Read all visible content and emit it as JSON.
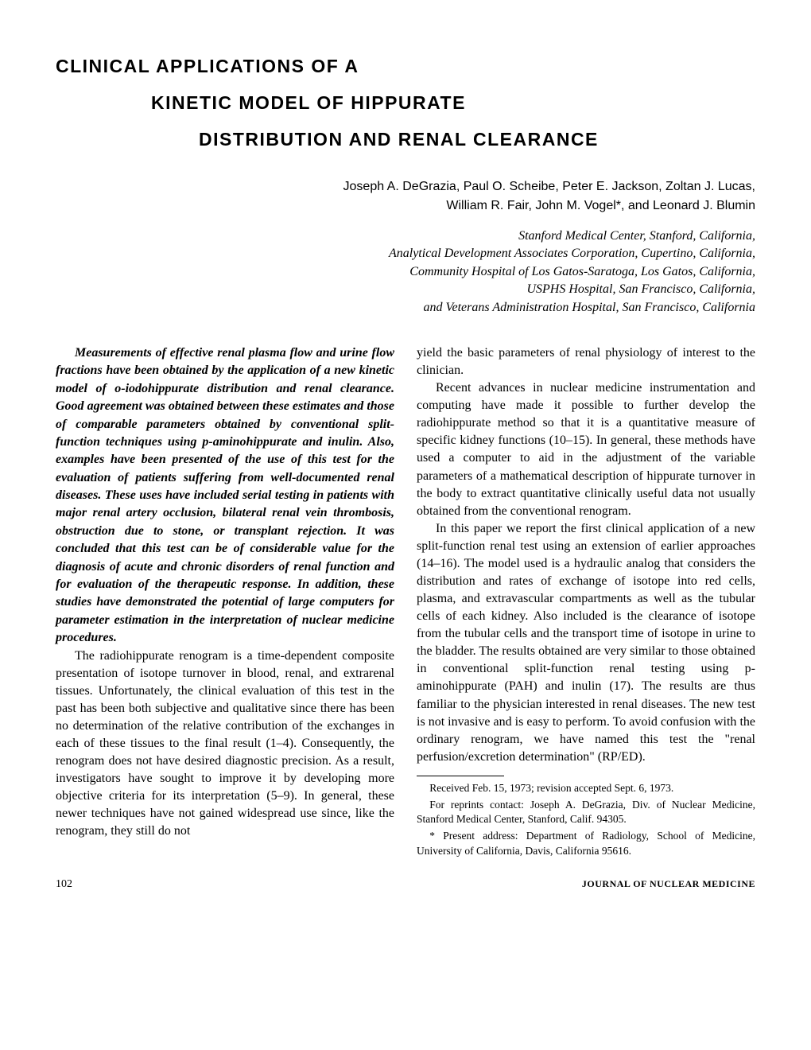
{
  "title": {
    "line1": "CLINICAL APPLICATIONS OF A",
    "line2": "KINETIC MODEL OF HIPPURATE",
    "line3": "DISTRIBUTION AND RENAL CLEARANCE"
  },
  "authors": {
    "line1": "Joseph A. DeGrazia, Paul O. Scheibe, Peter E. Jackson, Zoltan J. Lucas,",
    "line2": "William R. Fair, John M. Vogel*, and Leonard J. Blumin"
  },
  "affiliations": {
    "line1": "Stanford Medical Center, Stanford, California,",
    "line2": "Analytical Development Associates Corporation, Cupertino, California,",
    "line3": "Community Hospital of Los Gatos-Saratoga, Los Gatos, California,",
    "line4": "USPHS Hospital, San Francisco, California,",
    "line5": "and Veterans Administration Hospital, San Francisco, California"
  },
  "abstract": "Measurements of effective renal plasma flow and urine flow fractions have been obtained by the application of a new kinetic model of o-iodohippurate distribution and renal clearance. Good agreement was obtained between these estimates and those of comparable parameters obtained by conventional split-function techniques using p-aminohippurate and inulin. Also, examples have been presented of the use of this test for the evaluation of patients suffering from well-documented renal diseases. These uses have included serial testing in patients with major renal artery occlusion, bilateral renal vein thrombosis, obstruction due to stone, or transplant rejection. It was concluded that this test can be of considerable value for the diagnosis of acute and chronic disorders of renal function and for evaluation of the therapeutic response. In addition, these studies have demonstrated the potential of large computers for parameter estimation in the interpretation of nuclear medicine procedures.",
  "left_para1": "The radiohippurate renogram is a time-dependent composite presentation of isotope turnover in blood, renal, and extrarenal tissues. Unfortunately, the clinical evaluation of this test in the past has been both subjective and qualitative since there has been no determination of the relative contribution of the exchanges in each of these tissues to the final result (1–4). Consequently, the renogram does not have desired diagnostic precision. As a result, investigators have sought to improve it by developing more objective criteria for its interpretation (5–9). In general, these newer techniques have not gained widespread use since, like the renogram, they still do not",
  "right_para1a": "yield the basic parameters of renal physiology of interest to the clinician.",
  "right_para2": "Recent advances in nuclear medicine instrumentation and computing have made it possible to further develop the radiohippurate method so that it is a quantitative measure of specific kidney functions (10–15). In general, these methods have used a computer to aid in the adjustment of the variable parameters of a mathematical description of hippurate turnover in the body to extract quantitative clinically useful data not usually obtained from the conventional renogram.",
  "right_para3": "In this paper we report the first clinical application of a new split-function renal test using an extension of earlier approaches (14–16). The model used is a hydraulic analog that considers the distribution and rates of exchange of isotope into red cells, plasma, and extravascular compartments as well as the tubular cells of each kidney. Also included is the clearance of isotope from the tubular cells and the transport time of isotope in urine to the bladder. The results obtained are very similar to those obtained in conventional split-function renal testing using p-aminohippurate (PAH) and inulin (17). The results are thus familiar to the physician interested in renal diseases. The new test is not invasive and is easy to perform. To avoid confusion with the ordinary renogram, we have named this test the \"renal perfusion/excretion determination\" (RP/ED).",
  "footnotes": {
    "line1": "Received Feb. 15, 1973; revision accepted Sept. 6, 1973.",
    "line2": "For reprints contact: Joseph A. DeGrazia, Div. of Nuclear Medicine, Stanford Medical Center, Stanford, Calif. 94305.",
    "line3": "* Present address: Department of Radiology, School of Medicine, University of California, Davis, California 95616."
  },
  "footer": {
    "page": "102",
    "journal": "JOURNAL OF NUCLEAR MEDICINE"
  }
}
